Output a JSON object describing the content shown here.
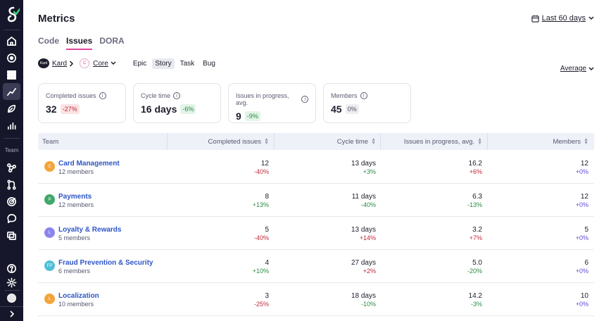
{
  "header": {
    "title": "Metrics",
    "date_range": "Last 60 days"
  },
  "tabs": [
    {
      "label": "Code"
    },
    {
      "label": "Issues"
    },
    {
      "label": "DORA"
    }
  ],
  "filters": {
    "org_logo_text": "Kard",
    "org": "Kard",
    "team_badge": "C",
    "team": "Core",
    "issue_types": [
      "Epic",
      "Story",
      "Task",
      "Bug"
    ],
    "selected_issue_type": "Story",
    "aggregation": "Average"
  },
  "sidebar": {
    "section_label": "Team"
  },
  "cards": [
    {
      "label": "Completed issues",
      "value": "32",
      "delta": "-27%",
      "tone": "neg"
    },
    {
      "label": "Cycle time",
      "value": "16 days",
      "delta": "-6%",
      "tone": "pos"
    },
    {
      "label": "Issues in progress, avg.",
      "value": "9",
      "delta": "-9%",
      "tone": "pos"
    },
    {
      "label": "Members",
      "value": "45",
      "delta": "0%",
      "tone": "neu"
    }
  ],
  "table": {
    "columns": [
      "Team",
      "Completed issues",
      "Cycle time",
      "Issues in progress, avg.",
      "Members"
    ],
    "rows": [
      {
        "initials": "C",
        "color": "#f4a43a",
        "name": "Card Management",
        "members": "12 members",
        "completed": "12",
        "completed_delta": "-40%",
        "cycle": "13 days",
        "cycle_delta": "+3%",
        "progress": "16.2",
        "progress_delta": "+6%",
        "member_count": "12",
        "member_delta": "+0%"
      },
      {
        "initials": "P",
        "color": "#3fa86a",
        "name": "Payments",
        "members": "12 members",
        "completed": "8",
        "completed_delta": "+13%",
        "cycle": "11 days",
        "cycle_delta": "-40%",
        "progress": "6.3",
        "progress_delta": "-13%",
        "member_count": "12",
        "member_delta": "+0%"
      },
      {
        "initials": "L",
        "color": "#8b86ee",
        "name": "Loyalty & Rewards",
        "members": "5 members",
        "completed": "5",
        "completed_delta": "-40%",
        "cycle": "13 days",
        "cycle_delta": "+14%",
        "progress": "3.2",
        "progress_delta": "+7%",
        "member_count": "5",
        "member_delta": "+0%"
      },
      {
        "initials": "FP",
        "color": "#4fbfd6",
        "name": "Fraud Prevention & Security",
        "members": "6 members",
        "completed": "4",
        "completed_delta": "+10%",
        "cycle": "27 days",
        "cycle_delta": "+2%",
        "progress": "5.0",
        "progress_delta": "-20%",
        "member_count": "6",
        "member_delta": "+0%"
      },
      {
        "initials": "L",
        "color": "#f4a43a",
        "name": "Localization",
        "members": "10 members",
        "completed": "3",
        "completed_delta": "-25%",
        "cycle": "18 days",
        "cycle_delta": "-10%",
        "progress": "14.2",
        "progress_delta": "-3%",
        "member_count": "10",
        "member_delta": "+0%"
      }
    ]
  }
}
